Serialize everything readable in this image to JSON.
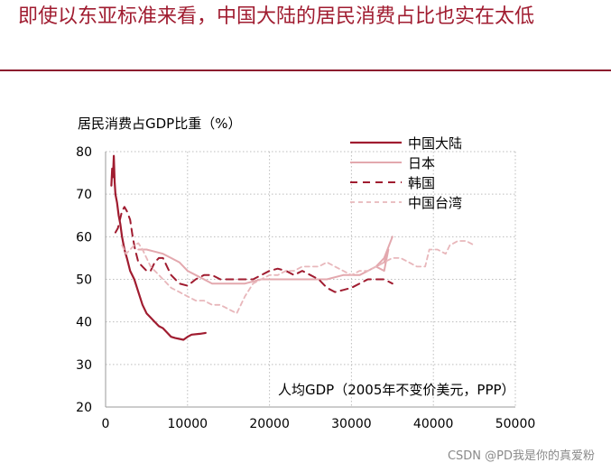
{
  "slide": {
    "title": "即使以东亚标准来看，中国大陆的居民消费占比也实在太低"
  },
  "watermark": "CSDN @PD我是你的真爱粉",
  "colors": {
    "title": "#a01c30",
    "rule": "#8c1a2e",
    "grid": "#bdbdbd"
  },
  "chart_data": {
    "type": "line",
    "title": "",
    "ylabel": "居民消费占GDP比重（%）",
    "xlabel": "人均GDP（2005年不变价美元，PPP）",
    "xlim": [
      0,
      50000
    ],
    "ylim": [
      20,
      80
    ],
    "x_ticks": [
      0,
      10000,
      20000,
      30000,
      40000,
      50000
    ],
    "x_tick_labels": [
      "0",
      "10000",
      "20000",
      "30000",
      "40000",
      "50000"
    ],
    "y_ticks": [
      20,
      30,
      40,
      50,
      60,
      70,
      80
    ],
    "y_tick_labels": [
      "20",
      "30",
      "40",
      "50",
      "60",
      "70",
      "80"
    ],
    "grid": true,
    "legend_position": "top-right",
    "series": [
      {
        "name": "中国大陆",
        "color": "#a01c30",
        "dash": "solid",
        "width": 2.2,
        "points": [
          [
            700,
            72
          ],
          [
            800,
            76
          ],
          [
            900,
            74
          ],
          [
            1000,
            79
          ],
          [
            1100,
            73
          ],
          [
            1200,
            70
          ],
          [
            1400,
            68
          ],
          [
            1600,
            65
          ],
          [
            1800,
            63
          ],
          [
            2000,
            60
          ],
          [
            2300,
            57
          ],
          [
            2600,
            55
          ],
          [
            3000,
            52
          ],
          [
            3500,
            50
          ],
          [
            4000,
            47
          ],
          [
            4500,
            44
          ],
          [
            5000,
            42
          ],
          [
            5500,
            41
          ],
          [
            6000,
            40
          ],
          [
            6500,
            39
          ],
          [
            7000,
            38.5
          ],
          [
            7500,
            37.5
          ],
          [
            8000,
            36.5
          ],
          [
            8500,
            36.2
          ],
          [
            9000,
            36
          ],
          [
            9500,
            35.8
          ],
          [
            10000,
            36.5
          ],
          [
            10500,
            37
          ],
          [
            11500,
            37.2
          ],
          [
            12200,
            37.4
          ]
        ]
      },
      {
        "name": "日本",
        "color": "#e3a8ae",
        "dash": "solid",
        "width": 2,
        "points": [
          [
            4000,
            57
          ],
          [
            5000,
            57
          ],
          [
            6000,
            56.5
          ],
          [
            7000,
            56
          ],
          [
            8000,
            55
          ],
          [
            9000,
            54
          ],
          [
            10000,
            52
          ],
          [
            11000,
            51
          ],
          [
            12000,
            50
          ],
          [
            13000,
            49
          ],
          [
            15000,
            49
          ],
          [
            17000,
            49
          ],
          [
            19000,
            50
          ],
          [
            21000,
            50
          ],
          [
            23000,
            50
          ],
          [
            25000,
            50
          ],
          [
            27000,
            50
          ],
          [
            29000,
            51
          ],
          [
            31000,
            51
          ],
          [
            32000,
            52
          ],
          [
            33000,
            53
          ],
          [
            34000,
            54
          ],
          [
            34500,
            57
          ],
          [
            34000,
            52
          ],
          [
            33000,
            53
          ],
          [
            34000,
            55
          ],
          [
            35000,
            60
          ]
        ]
      },
      {
        "name": "韩国",
        "color": "#a01c30",
        "dash": "8,6",
        "width": 2,
        "points": [
          [
            1200,
            61
          ],
          [
            1500,
            62
          ],
          [
            2000,
            66
          ],
          [
            2300,
            67
          ],
          [
            2600,
            66
          ],
          [
            3000,
            64
          ],
          [
            3300,
            60
          ],
          [
            3600,
            57
          ],
          [
            4000,
            54
          ],
          [
            4500,
            53
          ],
          [
            5000,
            52
          ],
          [
            5500,
            52
          ],
          [
            6000,
            54
          ],
          [
            6500,
            55
          ],
          [
            7000,
            55
          ],
          [
            7500,
            53
          ],
          [
            8000,
            51
          ],
          [
            8500,
            50
          ],
          [
            9000,
            49
          ],
          [
            10000,
            48.5
          ],
          [
            11000,
            50
          ],
          [
            12000,
            51
          ],
          [
            13000,
            51
          ],
          [
            14000,
            50
          ],
          [
            15000,
            50
          ],
          [
            16000,
            50
          ],
          [
            17000,
            50
          ],
          [
            18000,
            50
          ],
          [
            19000,
            51
          ],
          [
            20000,
            52
          ],
          [
            21000,
            52.5
          ],
          [
            22000,
            52
          ],
          [
            23000,
            51
          ],
          [
            24000,
            52
          ],
          [
            25000,
            51
          ],
          [
            26000,
            50
          ],
          [
            27000,
            48
          ],
          [
            28000,
            47
          ],
          [
            29000,
            47.5
          ],
          [
            30000,
            48
          ],
          [
            31000,
            49
          ],
          [
            32000,
            50
          ],
          [
            33000,
            50
          ],
          [
            34000,
            50
          ],
          [
            35000,
            49
          ]
        ]
      },
      {
        "name": "中国台湾",
        "color": "#e8b7bb",
        "dash": "5,4",
        "width": 1.8,
        "points": [
          [
            2000,
            58
          ],
          [
            2500,
            56
          ],
          [
            3000,
            57
          ],
          [
            3500,
            58
          ],
          [
            4000,
            58.5
          ],
          [
            4500,
            57
          ],
          [
            5000,
            55
          ],
          [
            5500,
            53
          ],
          [
            6000,
            52
          ],
          [
            7000,
            50
          ],
          [
            8000,
            48
          ],
          [
            9000,
            47
          ],
          [
            10000,
            46
          ],
          [
            11000,
            45
          ],
          [
            12000,
            45
          ],
          [
            13000,
            44
          ],
          [
            14000,
            44
          ],
          [
            15000,
            43
          ],
          [
            16000,
            42
          ],
          [
            17000,
            46
          ],
          [
            18000,
            49
          ],
          [
            19000,
            50
          ],
          [
            20000,
            51
          ],
          [
            21000,
            51
          ],
          [
            22000,
            52
          ],
          [
            23000,
            52
          ],
          [
            24000,
            53
          ],
          [
            25000,
            53
          ],
          [
            26000,
            53
          ],
          [
            27000,
            54
          ],
          [
            28000,
            53
          ],
          [
            29000,
            52
          ],
          [
            30000,
            51
          ],
          [
            31000,
            52
          ],
          [
            32000,
            52
          ],
          [
            33000,
            53
          ],
          [
            34000,
            54
          ],
          [
            35000,
            55
          ],
          [
            36000,
            55
          ],
          [
            37000,
            54
          ],
          [
            38000,
            53
          ],
          [
            39000,
            53
          ],
          [
            39500,
            57
          ],
          [
            40500,
            57
          ],
          [
            41500,
            56
          ],
          [
            42000,
            58
          ],
          [
            43000,
            59
          ],
          [
            44000,
            59
          ],
          [
            45000,
            58
          ]
        ]
      }
    ]
  }
}
